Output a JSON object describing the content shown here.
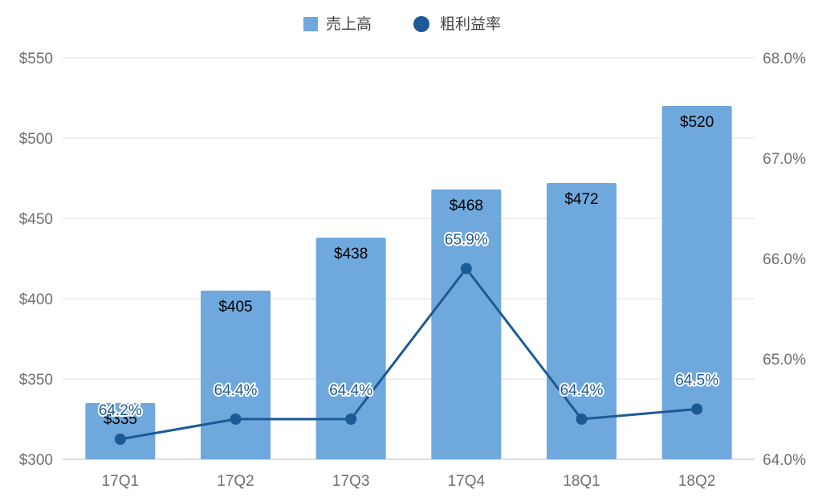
{
  "chart_data": {
    "type": "bar",
    "categories": [
      "17Q1",
      "17Q2",
      "17Q3",
      "17Q4",
      "18Q1",
      "18Q2"
    ],
    "series": [
      {
        "name": "売上高",
        "type": "bar",
        "axis": "left",
        "values": [
          335,
          405,
          438,
          468,
          472,
          520
        ],
        "labels": [
          "$335",
          "$405",
          "$438",
          "$468",
          "$472",
          "$520"
        ]
      },
      {
        "name": "粗利益率",
        "type": "line",
        "axis": "right",
        "values": [
          64.2,
          64.4,
          64.4,
          65.9,
          64.4,
          64.5
        ],
        "labels": [
          "64.2%",
          "64.4%",
          "64.4%",
          "65.9%",
          "64.4%",
          "64.5%"
        ]
      }
    ],
    "y_left": {
      "lim": [
        300,
        550
      ],
      "ticks": [
        300,
        350,
        400,
        450,
        500,
        550
      ],
      "tick_labels": [
        "$300",
        "$350",
        "$400",
        "$450",
        "$500",
        "$550"
      ]
    },
    "y_right": {
      "lim": [
        64.0,
        68.0
      ],
      "ticks": [
        64.0,
        65.0,
        66.0,
        67.0,
        68.0
      ],
      "tick_labels": [
        "64.0%",
        "65.0%",
        "66.0%",
        "67.0%",
        "68.0%"
      ]
    },
    "grid": true,
    "legend": "top-center",
    "colors": {
      "bar": "#6fa8dc",
      "line": "#1c5a96",
      "grid": "#dddddd",
      "axis": "#bbbbbb"
    }
  }
}
